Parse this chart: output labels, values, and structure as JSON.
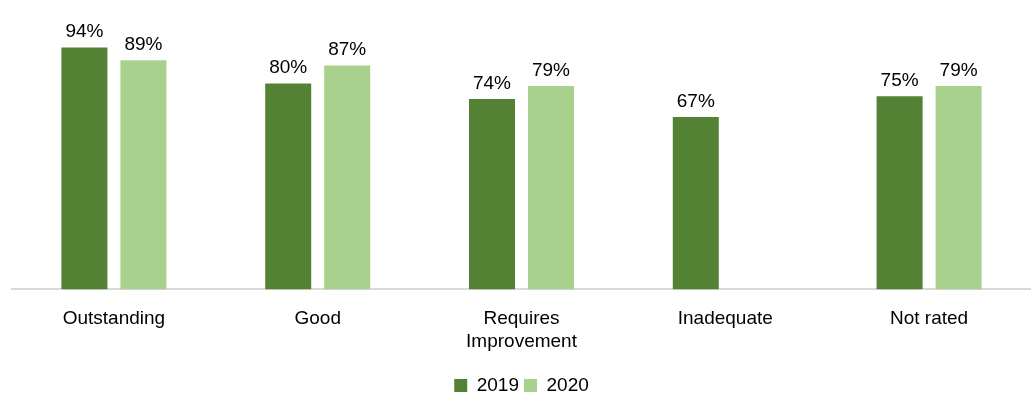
{
  "chart_data": {
    "type": "bar",
    "categories": [
      "Outstanding",
      "Good",
      "Requires Improvement",
      "Inadequate",
      "Not rated"
    ],
    "series": [
      {
        "name": "2019",
        "color": "#548235",
        "values": [
          94,
          80,
          74,
          67,
          75
        ],
        "value_labels": [
          "94%",
          "80%",
          "74%",
          "67%",
          "75%"
        ]
      },
      {
        "name": "2020",
        "color": "#a9d18e",
        "values": [
          89,
          87,
          79,
          null,
          79
        ],
        "value_labels": [
          "89%",
          "87%",
          "79%",
          null,
          "79%"
        ]
      }
    ],
    "legend": "bottom"
  }
}
